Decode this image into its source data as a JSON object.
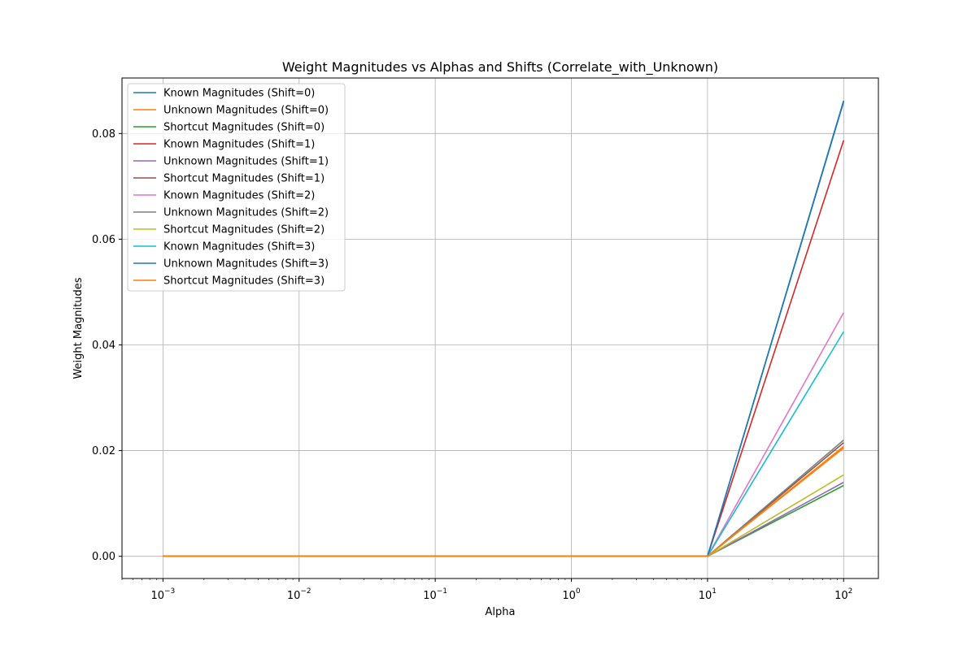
{
  "chart_data": {
    "type": "line",
    "title": "Weight Magnitudes vs Alphas and Shifts (Correlate_with_Unknown)",
    "xlabel": "Alpha",
    "ylabel": "Weight Magnitudes",
    "xscale": "log",
    "xlim": [
      0.0005,
      180
    ],
    "ylim": [
      -0.0042,
      0.0905
    ],
    "grid": true,
    "legend_position": "upper-left",
    "x": [
      0.001,
      0.01,
      0.1,
      1,
      10,
      100
    ],
    "x_ticks": [
      {
        "value": 0.001,
        "base": "10",
        "exp": "−3"
      },
      {
        "value": 0.01,
        "base": "10",
        "exp": "−2"
      },
      {
        "value": 0.1,
        "base": "10",
        "exp": "−1"
      },
      {
        "value": 1,
        "base": "10",
        "exp": "0"
      },
      {
        "value": 10,
        "base": "10",
        "exp": "1"
      },
      {
        "value": 100,
        "base": "10",
        "exp": "2"
      }
    ],
    "y_ticks": [
      {
        "value": 0.0,
        "label": "0.00"
      },
      {
        "value": 0.02,
        "label": "0.02"
      },
      {
        "value": 0.04,
        "label": "0.04"
      },
      {
        "value": 0.06,
        "label": "0.06"
      },
      {
        "value": 0.08,
        "label": "0.08"
      }
    ],
    "series": [
      {
        "name": "Known Magnitudes (Shift=0)",
        "color": "#1f77b4",
        "values": [
          0,
          0,
          0,
          0,
          0,
          0.086
        ]
      },
      {
        "name": "Unknown Magnitudes (Shift=0)",
        "color": "#ff7f0e",
        "values": [
          0,
          0,
          0,
          0,
          0,
          0.0205
        ]
      },
      {
        "name": "Shortcut Magnitudes (Shift=0)",
        "color": "#2ca02c",
        "values": [
          0,
          0,
          0,
          0,
          0,
          0.0134
        ]
      },
      {
        "name": "Known Magnitudes (Shift=1)",
        "color": "#d62728",
        "values": [
          0,
          0,
          0,
          0,
          0,
          0.0787
        ]
      },
      {
        "name": "Unknown Magnitudes (Shift=1)",
        "color": "#9467bd",
        "values": [
          0,
          0,
          0,
          0,
          0,
          0.014
        ]
      },
      {
        "name": "Shortcut Magnitudes (Shift=1)",
        "color": "#8c564b",
        "values": [
          0,
          0,
          0,
          0,
          0,
          0.0215
        ]
      },
      {
        "name": "Known Magnitudes (Shift=2)",
        "color": "#e377c2",
        "values": [
          0,
          0,
          0,
          0,
          0,
          0.0461
        ]
      },
      {
        "name": "Unknown Magnitudes (Shift=2)",
        "color": "#7f7f7f",
        "values": [
          0,
          0,
          0,
          0,
          0,
          0.022
        ]
      },
      {
        "name": "Shortcut Magnitudes (Shift=2)",
        "color": "#bcbd22",
        "values": [
          0,
          0,
          0,
          0,
          0,
          0.0154
        ]
      },
      {
        "name": "Known Magnitudes (Shift=3)",
        "color": "#17becf",
        "values": [
          0,
          0,
          0,
          0,
          0,
          0.0425
        ]
      },
      {
        "name": "Unknown Magnitudes (Shift=3)",
        "color": "#1f77b4",
        "values": [
          0,
          0,
          0,
          0,
          0,
          0.0862
        ]
      },
      {
        "name": "Shortcut Magnitudes (Shift=3)",
        "color": "#ff7f0e",
        "values": [
          0,
          0,
          0,
          0,
          0,
          0.0208
        ]
      }
    ]
  }
}
